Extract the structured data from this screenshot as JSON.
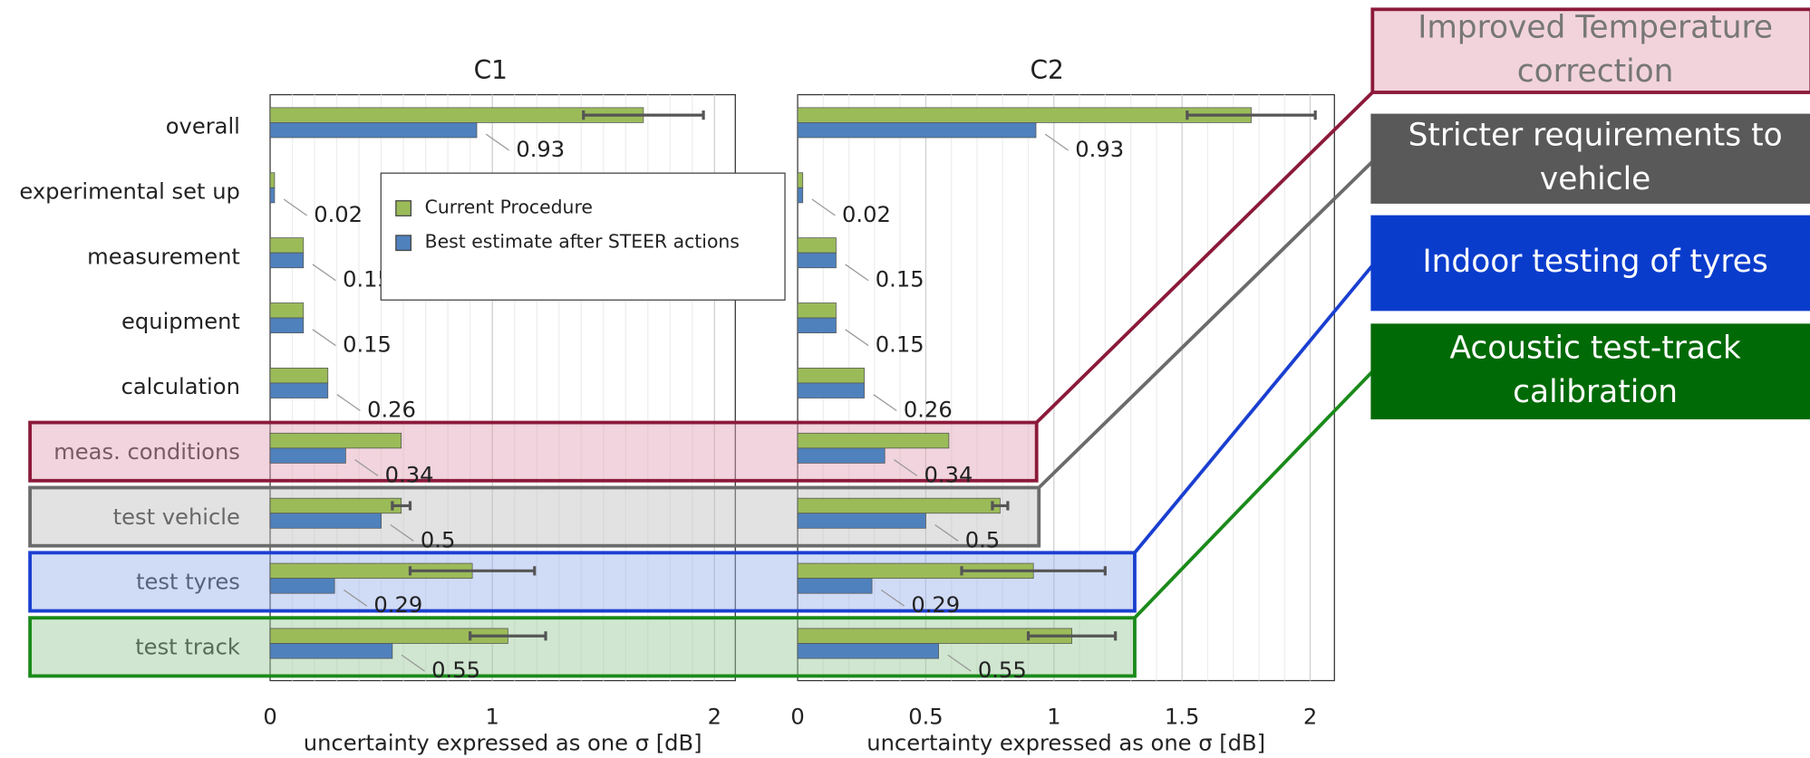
{
  "chart_data": [
    {
      "type": "bar",
      "orientation": "horizontal",
      "title": "C1",
      "x_label": "uncertainty expressed as one  σ [dB]",
      "categories": [
        "overall",
        "experimental set up",
        "measurement",
        "equipment",
        "calculation",
        "meas. conditions",
        "test vehicle",
        "test tyres",
        "test track"
      ],
      "series": [
        {
          "name": "Current Procedure",
          "color": "#9bbb59",
          "values": [
            1.68,
            0.02,
            0.15,
            0.15,
            0.26,
            0.59,
            0.59,
            0.91,
            1.07
          ],
          "errors": [
            0.27,
            null,
            null,
            null,
            null,
            null,
            0.04,
            0.28,
            0.17
          ]
        },
        {
          "name": "Best estimate after STEER actions",
          "color": "#4f81bd",
          "values": [
            0.93,
            0.02,
            0.15,
            0.15,
            0.26,
            0.34,
            0.5,
            0.29,
            0.55
          ]
        }
      ],
      "xlim": [
        0,
        2.1
      ],
      "xticks": [
        0,
        1,
        2
      ],
      "grid": true,
      "legend": "center"
    },
    {
      "type": "bar",
      "orientation": "horizontal",
      "title": "C2",
      "x_label": "uncertainty expressed as one  σ [dB]",
      "series": [
        {
          "color": "#9bbb59",
          "values": [
            1.77,
            0.02,
            0.15,
            0.15,
            0.26,
            0.59,
            0.79,
            0.92,
            1.07
          ],
          "errors": [
            0.25,
            null,
            null,
            null,
            null,
            null,
            0.03,
            0.28,
            0.17
          ]
        },
        {
          "color": "#4f81bd",
          "values": [
            0.93,
            0.02,
            0.15,
            0.15,
            0.26,
            0.34,
            0.5,
            0.29,
            0.55
          ]
        }
      ],
      "xlim": [
        0,
        2.1
      ],
      "xticks": [
        0,
        0.5,
        1,
        1.5,
        2
      ],
      "grid": true
    }
  ],
  "callouts": [
    {
      "lines": [
        "Improved Temperature",
        "correction"
      ]
    },
    {
      "lines": [
        "Stricter requirements to",
        "vehicle"
      ]
    },
    {
      "lines": [
        "Indoor testing of tyres"
      ]
    },
    {
      "lines": [
        "Acoustic test-track",
        "calibration"
      ]
    }
  ]
}
